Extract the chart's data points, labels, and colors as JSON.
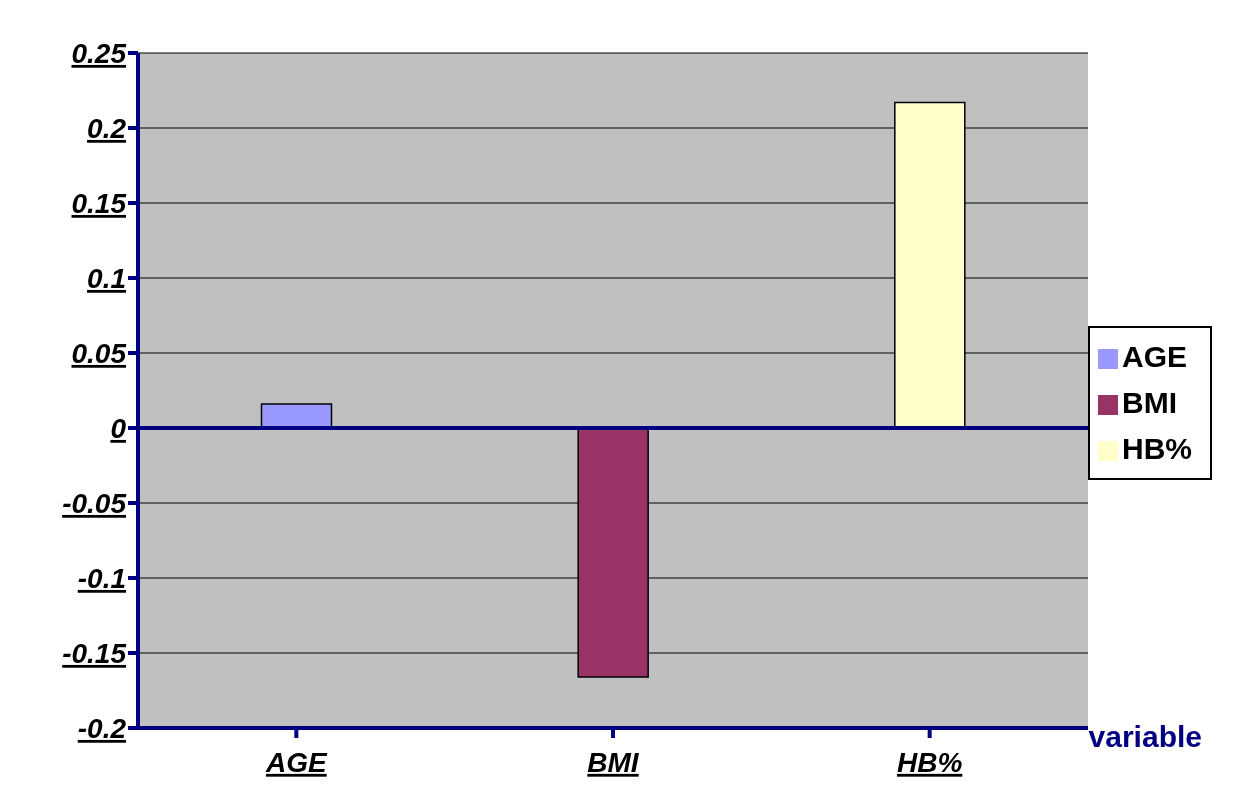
{
  "chart_data": {
    "type": "bar",
    "xlabel": "variable",
    "categories": [
      "AGE",
      "BMI",
      "HB%"
    ],
    "series": [
      {
        "name": "AGE",
        "color": "#9999ff",
        "values": [
          0.016,
          null,
          null
        ]
      },
      {
        "name": "BMI",
        "color": "#993366",
        "values": [
          null,
          -0.166,
          null
        ]
      },
      {
        "name": "HB%",
        "color": "#ffffcc",
        "values": [
          null,
          null,
          0.217
        ]
      }
    ],
    "ylim": [
      -0.2,
      0.25
    ],
    "yticks": [
      -0.2,
      -0.15,
      -0.1,
      -0.05,
      0,
      0.05,
      0.1,
      0.15,
      0.2,
      0.25
    ],
    "grid": "y",
    "legend": "right",
    "ref_lines": [
      {
        "axis": "y",
        "value": 0,
        "color": "#000080"
      }
    ]
  }
}
